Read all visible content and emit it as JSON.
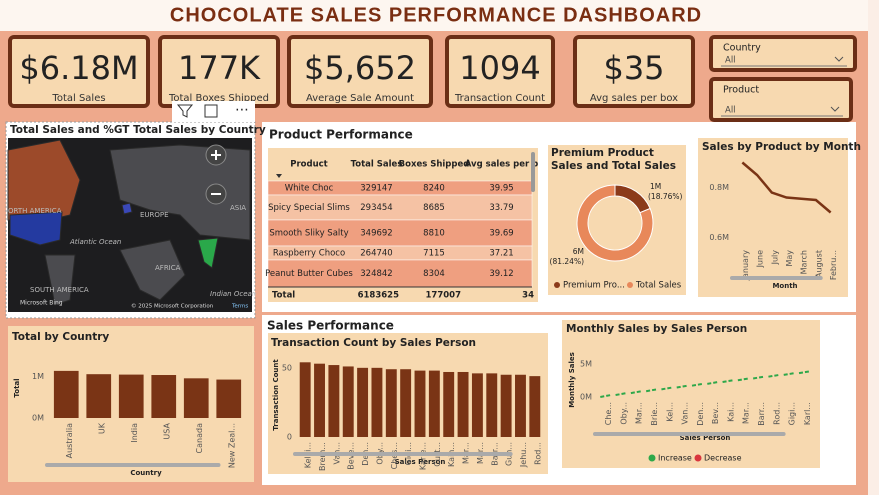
{
  "header": {
    "title": "CHOCOLATE SALES PERFORMANCE DASHBOARD"
  },
  "kpis": [
    {
      "value": "$6.18M",
      "label": "Total Sales"
    },
    {
      "value": "177K",
      "label": "Total Boxes Shipped"
    },
    {
      "value": "$5,652",
      "label": "Average Sale Amount"
    },
    {
      "value": "1094",
      "label": "Transaction Count"
    },
    {
      "value": "$35",
      "label": "Avg sales per box"
    }
  ],
  "slicers": [
    {
      "label": "Country",
      "value": "All"
    },
    {
      "label": "Product",
      "value": "All"
    }
  ],
  "map": {
    "title": "Total Sales and %GT Total Sales by Country",
    "labels": [
      "ORTH AMERICA",
      "EUROPE",
      "ASIA",
      "Atlantic Ocean",
      "AFRICA",
      "SOUTH AMERICA",
      "Indian Ocean"
    ],
    "credits": [
      "Microsoft Bing",
      "© 2025 Microsoft Corporation",
      "Terms"
    ]
  },
  "sections": [
    "Product Performance",
    "Sales Performance"
  ],
  "table": {
    "columns": [
      "Product",
      "Total Sales",
      "Boxes Shipped",
      "Avg sales per b"
    ],
    "rows": [
      [
        "White Choc",
        329147,
        8240,
        39.95
      ],
      [
        "Spicy Special Slims",
        293454,
        8685,
        33.79
      ],
      [
        "Smooth Sliky Salty",
        349692,
        8810,
        39.69
      ],
      [
        "Raspberry Choco",
        264740,
        7115,
        37.21
      ],
      [
        "Peanut Butter Cubes",
        324842,
        8304,
        39.12
      ]
    ],
    "total": [
      "Total",
      6183625,
      177007,
      34
    ]
  },
  "chart_data": [
    {
      "type": "line",
      "title": "Sales by Product by Month",
      "categories": [
        "January",
        "June",
        "July",
        "May",
        "March",
        "August",
        "Febru..."
      ],
      "values": [
        0.9,
        0.85,
        0.78,
        0.76,
        0.755,
        0.75,
        0.7
      ],
      "color": "#7a3415",
      "ylim": [
        0.57,
        0.95
      ],
      "yticks": [
        {
          "value": 0.6,
          "label": "0.6M"
        },
        {
          "value": 0.8,
          "label": "0.8M"
        }
      ],
      "xlabel": "Month",
      "grid": false
    },
    {
      "type": "donut",
      "title": "Premium Product Sales and Total Sales",
      "categories": [
        "Premium Pro...",
        "Total Sales"
      ],
      "values": [
        18.76,
        81.24
      ],
      "value_labels": [
        "(18.76%)",
        "(81.24%)"
      ],
      "amount_labels": [
        "1M",
        "6M"
      ],
      "colors": [
        "#8b3a1a",
        "#e8885a"
      ]
    },
    {
      "type": "bar",
      "title": "Total by Country",
      "categories": [
        "Australia",
        "UK",
        "India",
        "USA",
        "Canada",
        "New Zeal..."
      ],
      "values": [
        1.14,
        1.06,
        1.05,
        1.04,
        0.96,
        0.93
      ],
      "color": "#7a3415",
      "ylim": [
        0,
        1.5
      ],
      "yticks": [
        {
          "value": 0,
          "label": "0M"
        },
        {
          "value": 1,
          "label": "1M"
        }
      ],
      "xlabel": "Country",
      "ylabel": "Total",
      "grid": false
    },
    {
      "type": "bar",
      "title": "Transaction Count by Sales Person",
      "categories": [
        "Kelci...",
        "Brem...",
        "Van...",
        "Beve...",
        "Den...",
        "Oby...",
        "Ches...",
        "Gigi...",
        "Karle...",
        "Curt...",
        "Kain...",
        "Mar...",
        "Mar...",
        "Barr...",
        "Gun...",
        "Jehu...",
        "Rod..."
      ],
      "values": [
        54,
        53,
        52,
        51,
        50,
        50,
        49,
        49,
        48,
        48,
        47,
        47,
        46,
        46,
        45,
        45,
        44
      ],
      "color": "#7a3415",
      "ylim": [
        0,
        60
      ],
      "yticks": [
        0,
        50
      ],
      "xlabel": "Sales Person",
      "ylabel": "Transaction Count",
      "grid": false
    },
    {
      "type": "waterfall",
      "title": "Monthly Sales by Sales Person",
      "categories": [
        "Che...",
        "Oby...",
        "Mar...",
        "Brie...",
        "Kel...",
        "Van...",
        "Den...",
        "Bev...",
        "Kai...",
        "Mar...",
        "Barr...",
        "Rod...",
        "Gigi...",
        "Karl..."
      ],
      "values": [
        0.3,
        0.29,
        0.29,
        0.28,
        0.28,
        0.28,
        0.28,
        0.28,
        0.27,
        0.27,
        0.27,
        0.27,
        0.27,
        0.27
      ],
      "legend": [
        {
          "name": "Increase",
          "color": "#2ea84a"
        },
        {
          "name": "Decrease",
          "color": "#d9363e"
        }
      ],
      "ylim": [
        0,
        7
      ],
      "yticks": [
        {
          "value": 0,
          "label": "0M"
        },
        {
          "value": 5,
          "label": "5M"
        }
      ],
      "xlabel": "Sales Person",
      "ylabel": "Monthly Sales",
      "grid": false
    }
  ]
}
